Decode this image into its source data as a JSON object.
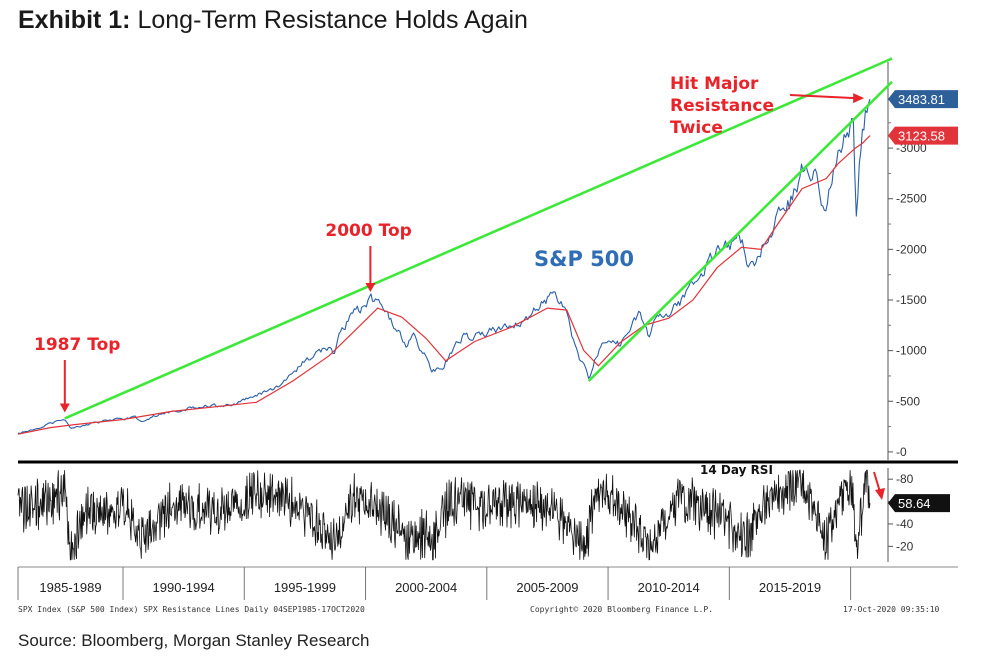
{
  "exhibit": {
    "label": "Exhibit 1:",
    "title": "Long-Term Resistance Holds Again"
  },
  "source": "Source: Bloomberg, Morgan Stanley Research",
  "footer": {
    "left": "SPX Index (S&P 500 Index) SPX Resistance Lines  Daily 04SEP1985-17OCT2020",
    "center": "Copyright© 2020 Bloomberg Finance L.P.",
    "right": "17-Oct-2020 09:35:10"
  },
  "colors": {
    "price_line": "#2a5fa8",
    "moving_average": "#e0343a",
    "resistance_lines": "#3ee83a",
    "annotation": "#e8232a",
    "rsi_line": "#111111",
    "last_price_badge": "#2d5f99",
    "ma_badge": "#e0343a"
  },
  "chart_data": [
    {
      "type": "line",
      "series_label": "S&P 500",
      "x_range": [
        1985.67,
        2020.8
      ],
      "ylim": [
        -80,
        3850
      ],
      "yticks": [
        0,
        500,
        1000,
        1500,
        2000,
        2500,
        3000
      ],
      "x_periods": [
        "1985-1989",
        "1990-1994",
        "1995-1999",
        "2000-2004",
        "2005-2009",
        "2010-2014",
        "2015-2019"
      ],
      "grid": false,
      "series": [
        {
          "role": "price",
          "x": [
            1985.67,
            1986.5,
            1987.0,
            1987.6,
            1987.83,
            1988.5,
            1989.5,
            1990.5,
            1990.8,
            1991.5,
            1992.5,
            1993.5,
            1994.5,
            1995.5,
            1996.5,
            1997.5,
            1998.5,
            1998.7,
            1999.0,
            1999.5,
            2000.0,
            2000.2,
            2000.7,
            2001.2,
            2001.7,
            2002.0,
            2002.5,
            2002.75,
            2003.2,
            2003.5,
            2004.0,
            2004.5,
            2005.0,
            2005.5,
            2006.0,
            2006.5,
            2007.0,
            2007.5,
            2007.8,
            2008.3,
            2008.8,
            2009.0,
            2009.2,
            2009.5,
            2010.0,
            2010.5,
            2011.0,
            2011.3,
            2011.7,
            2012.0,
            2012.5,
            2013.0,
            2013.5,
            2014.0,
            2014.5,
            2015.0,
            2015.5,
            2015.7,
            2016.1,
            2016.5,
            2017.0,
            2017.5,
            2018.0,
            2018.5,
            2018.97,
            2019.3,
            2019.5,
            2020.1,
            2020.22,
            2020.4,
            2020.65,
            2020.8
          ],
          "y": [
            185,
            240,
            280,
            330,
            230,
            265,
            320,
            340,
            300,
            375,
            420,
            455,
            460,
            560,
            660,
            900,
            1050,
            980,
            1230,
            1350,
            1450,
            1500,
            1420,
            1250,
            1050,
            1130,
            950,
            800,
            860,
            980,
            1130,
            1120,
            1190,
            1220,
            1280,
            1270,
            1420,
            1500,
            1560,
            1360,
            900,
            850,
            700,
            950,
            1130,
            1060,
            1300,
            1350,
            1130,
            1330,
            1380,
            1480,
            1640,
            1830,
            1950,
            2050,
            2100,
            1900,
            1850,
            2150,
            2300,
            2450,
            2800,
            2750,
            2400,
            2850,
            2950,
            3300,
            2300,
            3000,
            3400,
            3483.81
          ]
        },
        {
          "role": "moving-average",
          "x": [
            1985.67,
            1987.0,
            1988.0,
            1990.0,
            1992.0,
            1994.0,
            1995.5,
            1997.0,
            1998.5,
            2000.0,
            2000.5,
            2001.5,
            2002.5,
            2003.3,
            2004.5,
            2006.0,
            2007.5,
            2008.3,
            2009.0,
            2009.6,
            2010.5,
            2011.5,
            2012.5,
            2013.5,
            2014.5,
            2015.5,
            2016.3,
            2017.0,
            2018.0,
            2019.0,
            2019.5,
            2020.2,
            2020.5,
            2020.8
          ],
          "y": [
            175,
            240,
            270,
            320,
            400,
            450,
            490,
            700,
            950,
            1300,
            1420,
            1330,
            1120,
            900,
            1090,
            1230,
            1420,
            1400,
            1000,
            850,
            1080,
            1250,
            1320,
            1500,
            1820,
            2020,
            2000,
            2250,
            2600,
            2700,
            2850,
            3000,
            3050,
            3123.58
          ]
        }
      ],
      "resistance_lines": [
        {
          "x": [
            1987.6,
            2020.8
          ],
          "y": [
            330,
            3790
          ]
        },
        {
          "x": [
            2009.2,
            2020.8
          ],
          "y": [
            700,
            3440
          ]
        }
      ],
      "annotations": [
        {
          "text": "1987 Top",
          "x": 1987.6,
          "y": 330
        },
        {
          "text": "2000 Top",
          "x": 2000.2,
          "y": 1500
        },
        {
          "text": [
            "Hit Major",
            "Resistance",
            "Twice"
          ],
          "x": 2020.6,
          "y": 3483.81
        }
      ],
      "value_badges": [
        {
          "label": "3483.81",
          "value": 3483.81,
          "color": "#2d5f99"
        },
        {
          "label": "3123.58",
          "value": 3123.58,
          "color": "#e0343a"
        }
      ]
    },
    {
      "type": "line",
      "series_label": "14 Day RSI",
      "ylim": [
        6,
        90
      ],
      "yticks": [
        20,
        40,
        60,
        80
      ],
      "last_value": "58.64",
      "series": [
        {
          "role": "rsi",
          "x": [
            1985.67,
            1987.0,
            1987.6,
            1987.83,
            1988.5,
            1990.0,
            1990.8,
            1992.0,
            1994.0,
            1995.5,
            1997.0,
            1998.7,
            1999.5,
            2000.2,
            2001.2,
            2001.7,
            2002.5,
            2002.75,
            2003.5,
            2005.0,
            2007.0,
            2007.8,
            2008.8,
            2009.2,
            2009.5,
            2010.5,
            2011.7,
            2013.0,
            2014.5,
            2015.7,
            2016.5,
            2018.0,
            2018.97,
            2019.5,
            2020.1,
            2020.22,
            2020.5,
            2020.65,
            2020.8
          ],
          "y": [
            55,
            60,
            72,
            18,
            52,
            55,
            28,
            58,
            50,
            68,
            60,
            25,
            62,
            58,
            40,
            22,
            35,
            20,
            62,
            55,
            60,
            50,
            18,
            30,
            70,
            55,
            22,
            62,
            50,
            28,
            60,
            80,
            22,
            60,
            72,
            15,
            62,
            78,
            58.64
          ]
        }
      ]
    }
  ]
}
